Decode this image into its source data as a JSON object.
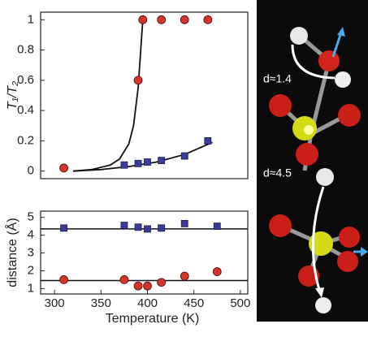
{
  "chart_data": [
    {
      "type": "scatter",
      "ylabel": "T₁/T₂",
      "xlim": [
        285,
        508
      ],
      "ylim": [
        -0.05,
        1.05
      ],
      "yticks": [
        0,
        0.2,
        0.4,
        0.6,
        0.8,
        1
      ],
      "series": [
        {
          "style": "markers",
          "marker": "circle",
          "color": "#d2352b",
          "x": [
            310,
            390,
            395,
            415,
            440,
            465
          ],
          "values": [
            0.02,
            0.6,
            1,
            1,
            1,
            1
          ]
        },
        {
          "style": "markers",
          "marker": "square",
          "color": "#3b3b9c",
          "x": [
            375,
            390,
            400,
            415,
            440,
            465
          ],
          "values": [
            0.04,
            0.05,
            0.06,
            0.07,
            0.1,
            0.2
          ]
        },
        {
          "style": "line",
          "color": "#111111",
          "x": [
            320,
            340,
            360,
            370,
            380,
            385,
            390,
            395
          ],
          "values": [
            0,
            0.01,
            0.04,
            0.08,
            0.18,
            0.3,
            0.55,
            1.0
          ]
        },
        {
          "style": "line",
          "color": "#111111",
          "x": [
            320,
            350,
            380,
            410,
            440,
            470
          ],
          "values": [
            0,
            0.01,
            0.03,
            0.06,
            0.11,
            0.19
          ]
        }
      ]
    },
    {
      "type": "scatter",
      "ylabel": "distance (Å)",
      "xlabel": "Temperature (K)",
      "xlim": [
        285,
        508
      ],
      "ylim": [
        0.7,
        5.35
      ],
      "xticks": [
        300,
        350,
        400,
        450,
        500
      ],
      "yticks": [
        1,
        2,
        3,
        4,
        5
      ],
      "reference_lines": [
        4.35,
        1.45
      ],
      "series": [
        {
          "style": "markers",
          "marker": "circle",
          "color": "#d2352b",
          "x": [
            310,
            375,
            390,
            400,
            415,
            440,
            475
          ],
          "values": [
            1.5,
            1.5,
            1.15,
            1.15,
            1.35,
            1.7,
            1.95
          ]
        },
        {
          "style": "markers",
          "marker": "square",
          "color": "#3b3b9c",
          "x": [
            310,
            375,
            390,
            400,
            415,
            440,
            475
          ],
          "values": [
            4.4,
            4.55,
            4.45,
            4.35,
            4.4,
            4.65,
            4.5
          ]
        }
      ]
    }
  ],
  "illustration": {
    "labels": [
      "d≈1.4",
      "d≈4.5"
    ]
  }
}
